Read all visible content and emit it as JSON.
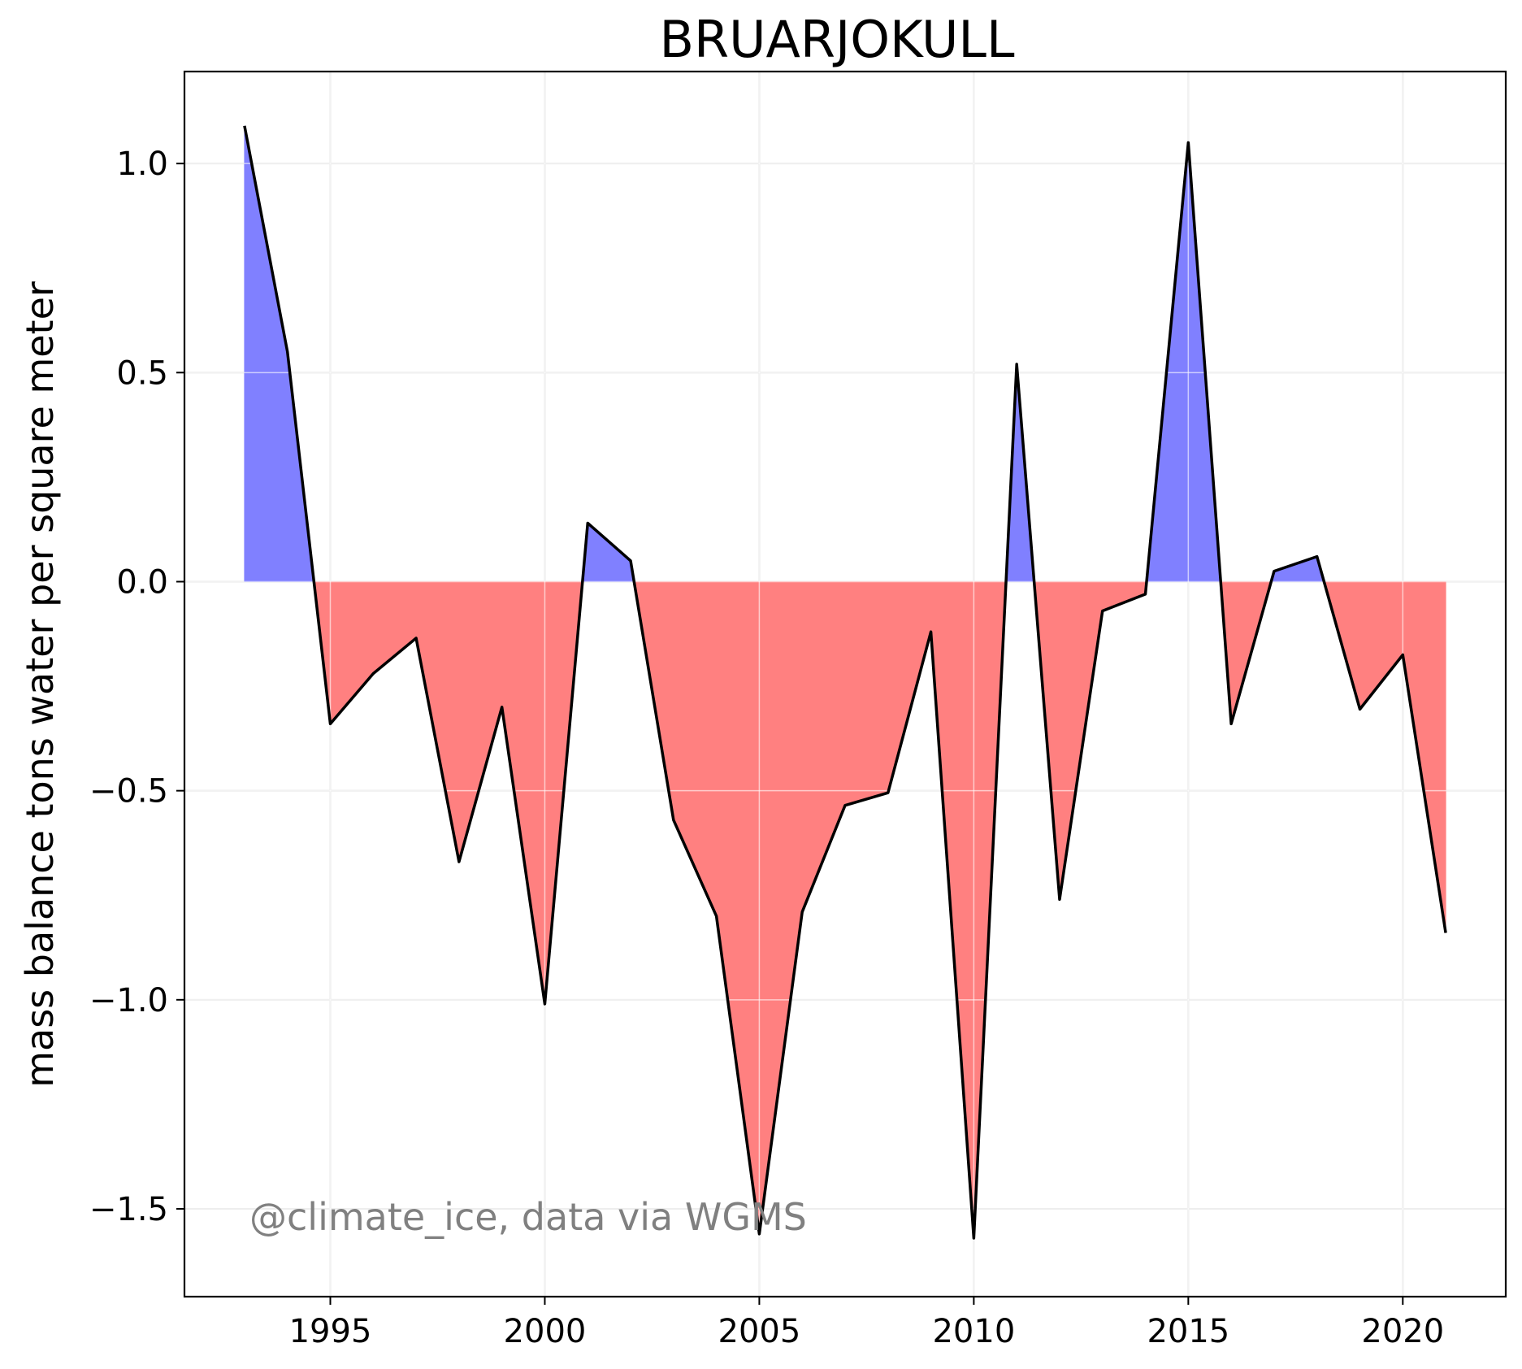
{
  "chart_data": {
    "type": "area",
    "title": "BRUARJOKULL",
    "xlabel": "",
    "ylabel": "mass balance tons water per square meter",
    "annotation": "@climate_ice, data via WGMS",
    "xlim": [
      1991.6,
      2022.4
    ],
    "ylim": [
      -1.71,
      1.22
    ],
    "xticks": [
      1995,
      2000,
      2005,
      2010,
      2015,
      2020
    ],
    "yticks": [
      1.0,
      0.5,
      0.0,
      -0.5,
      -1.0,
      -1.5
    ],
    "ytick_labels": [
      "1.0",
      "0.5",
      "0.0",
      "−0.5",
      "−1.0",
      "−1.5"
    ],
    "grid": true,
    "colors": {
      "positive": "#8080ff",
      "negative": "#ff8080",
      "line": "#000000"
    },
    "x": [
      1993,
      1994,
      1995,
      1996,
      1997,
      1998,
      1999,
      2000,
      2001,
      2002,
      2003,
      2004,
      2005,
      2006,
      2007,
      2008,
      2009,
      2010,
      2011,
      2012,
      2013,
      2014,
      2015,
      2016,
      2017,
      2018,
      2019,
      2020,
      2021
    ],
    "values": [
      1.09,
      0.55,
      -0.34,
      -0.22,
      -0.135,
      -0.67,
      -0.3,
      -1.01,
      0.14,
      0.05,
      -0.57,
      -0.8,
      -1.56,
      -0.79,
      -0.535,
      -0.505,
      -0.12,
      -1.57,
      0.52,
      -0.76,
      -0.07,
      -0.03,
      1.05,
      -0.34,
      0.025,
      0.06,
      -0.305,
      -0.175,
      -0.84
    ]
  }
}
